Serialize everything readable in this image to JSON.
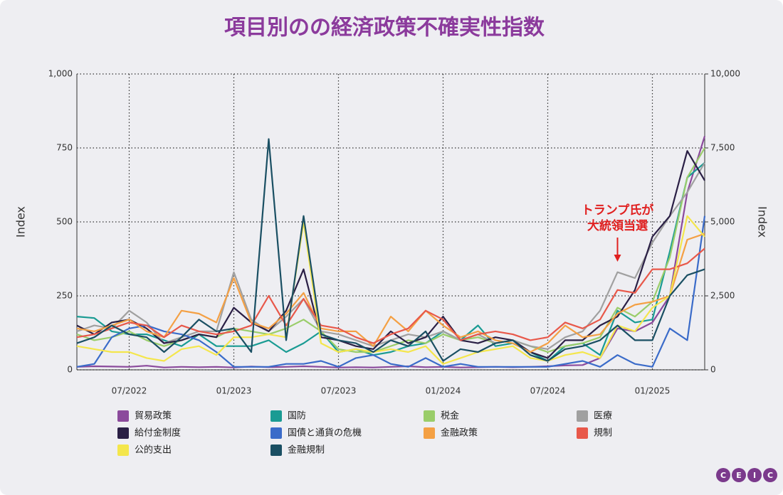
{
  "chart_data": {
    "type": "line",
    "title": "項目別のの経済政策不確実性指数",
    "ylabel": "Index",
    "y2label": "Index",
    "x": [
      "04/2022",
      "05/2022",
      "06/2022",
      "07/2022",
      "08/2022",
      "09/2022",
      "10/2022",
      "11/2022",
      "12/2022",
      "01/2023",
      "02/2023",
      "03/2023",
      "04/2023",
      "05/2023",
      "06/2023",
      "07/2023",
      "08/2023",
      "09/2023",
      "10/2023",
      "11/2023",
      "12/2023",
      "01/2024",
      "02/2024",
      "03/2024",
      "04/2024",
      "05/2024",
      "06/2024",
      "07/2024",
      "08/2024",
      "09/2024",
      "10/2024",
      "11/2024",
      "12/2024",
      "01/2025",
      "02/2025",
      "03/2025",
      "04/2025"
    ],
    "xticks": [
      "07/2022",
      "01/2023",
      "07/2023",
      "01/2024",
      "07/2024",
      "01/2025"
    ],
    "ylim": [
      0,
      1000
    ],
    "yticks": [
      0,
      250,
      500,
      750,
      {
        "value": 1000,
        "label": "1,000"
      }
    ],
    "y2lim": [
      0,
      10000
    ],
    "y2ticks": [
      0,
      {
        "value": 2500,
        "label": "2,500"
      },
      {
        "value": 5000,
        "label": "5,000"
      },
      {
        "value": 7500,
        "label": "7,500"
      },
      {
        "value": 10000,
        "label": "10,000"
      }
    ],
    "grid": true,
    "legend": "bottom",
    "series": [
      {
        "name": "貿易政策",
        "color": "#8b4a9c",
        "axis": "y2",
        "values": [
          100,
          120,
          110,
          100,
          140,
          80,
          100,
          90,
          100,
          80,
          110,
          90,
          100,
          120,
          100,
          80,
          90,
          80,
          100,
          120,
          90,
          100,
          80,
          90,
          100,
          90,
          100,
          120,
          150,
          160,
          400,
          1400,
          1300,
          1600,
          2500,
          6000,
          7900
        ]
      },
      {
        "name": "国防",
        "color": "#1a9b93",
        "values": [
          180,
          175,
          130,
          120,
          120,
          100,
          80,
          120,
          80,
          80,
          80,
          100,
          60,
          90,
          130,
          60,
          70,
          50,
          60,
          80,
          90,
          130,
          100,
          150,
          80,
          90,
          60,
          30,
          80,
          90,
          50,
          200,
          160,
          170,
          400,
          650,
          700
        ]
      },
      {
        "name": "税金",
        "color": "#9acd6a",
        "values": [
          120,
          100,
          110,
          130,
          100,
          80,
          100,
          120,
          110,
          140,
          130,
          120,
          140,
          170,
          130,
          70,
          60,
          60,
          80,
          100,
          90,
          120,
          100,
          110,
          90,
          100,
          80,
          60,
          80,
          90,
          110,
          210,
          180,
          230,
          380,
          650,
          750
        ]
      },
      {
        "name": "医療",
        "color": "#a0a0a0",
        "values": [
          130,
          150,
          140,
          200,
          160,
          90,
          110,
          130,
          130,
          330,
          170,
          130,
          180,
          240,
          130,
          120,
          100,
          80,
          100,
          120,
          110,
          130,
          100,
          120,
          90,
          100,
          80,
          70,
          110,
          130,
          200,
          330,
          310,
          430,
          520,
          600,
          700
        ]
      },
      {
        "name": "給付金制度",
        "color": "#2a1f45",
        "values": [
          150,
          120,
          160,
          170,
          140,
          90,
          100,
          120,
          110,
          210,
          160,
          130,
          200,
          340,
          110,
          100,
          80,
          70,
          130,
          90,
          110,
          180,
          100,
          90,
          110,
          100,
          60,
          40,
          100,
          100,
          150,
          180,
          270,
          450,
          520,
          740,
          640
        ]
      },
      {
        "name": "国債と通貨の危機",
        "color": "#3a6bc9",
        "values": [
          10,
          20,
          110,
          140,
          150,
          130,
          120,
          100,
          60,
          10,
          10,
          10,
          20,
          20,
          30,
          10,
          40,
          50,
          20,
          10,
          40,
          10,
          20,
          10,
          10,
          10,
          10,
          10,
          20,
          30,
          10,
          50,
          20,
          10,
          140,
          100,
          520
        ]
      },
      {
        "name": "金融政策",
        "color": "#f4a044",
        "values": [
          140,
          130,
          150,
          170,
          130,
          110,
          200,
          190,
          160,
          310,
          160,
          140,
          190,
          260,
          140,
          130,
          130,
          80,
          180,
          130,
          200,
          150,
          110,
          130,
          100,
          90,
          60,
          90,
          150,
          110,
          120,
          190,
          220,
          230,
          250,
          440,
          460
        ]
      },
      {
        "name": "規制",
        "color": "#e8584a",
        "values": [
          110,
          120,
          140,
          160,
          150,
          110,
          150,
          130,
          120,
          130,
          150,
          250,
          150,
          240,
          150,
          140,
          110,
          90,
          120,
          140,
          200,
          170,
          100,
          120,
          130,
          120,
          100,
          110,
          160,
          140,
          170,
          270,
          260,
          340,
          340,
          360,
          410
        ]
      },
      {
        "name": "公的支出",
        "color": "#f4e64c",
        "values": [
          80,
          70,
          60,
          60,
          40,
          30,
          70,
          80,
          50,
          110,
          110,
          120,
          110,
          500,
          90,
          60,
          70,
          60,
          70,
          60,
          80,
          20,
          40,
          60,
          70,
          80,
          40,
          30,
          50,
          60,
          40,
          150,
          130,
          210,
          250,
          520,
          450
        ]
      },
      {
        "name": "金融規制",
        "color": "#1a4f63",
        "values": [
          90,
          110,
          150,
          120,
          110,
          60,
          110,
          170,
          130,
          140,
          60,
          780,
          100,
          520,
          120,
          100,
          90,
          60,
          100,
          80,
          130,
          30,
          70,
          60,
          90,
          100,
          50,
          30,
          70,
          80,
          100,
          150,
          100,
          100,
          250,
          320,
          340
        ]
      }
    ],
    "annotation": {
      "text": [
        "トランプ氏が",
        "大統領当選"
      ],
      "x": "11/2024",
      "color": "#e02020"
    },
    "logo": [
      "C",
      "E",
      "I",
      "C"
    ]
  }
}
